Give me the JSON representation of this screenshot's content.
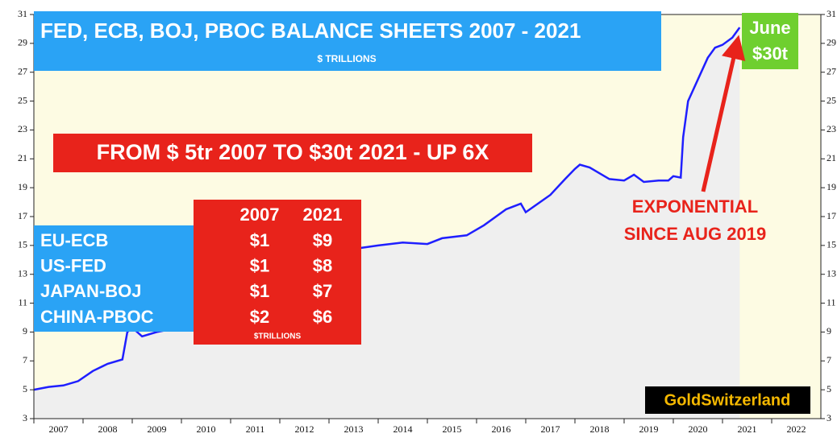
{
  "chart_data": {
    "type": "line",
    "title": "FED, ECB, BOJ, PBOC BALANCE SHEETS  2007 - 2021",
    "subtitle": "$ TRILLIONS",
    "headline": "FROM $ 5tr 2007 TO $30t 2021 - UP 6X",
    "callout": [
      "June",
      "$30t"
    ],
    "annotation": [
      "EXPONENTIAL",
      "SINCE AUG 2019"
    ],
    "watermark": "GoldSwitzerland",
    "comparison_table": {
      "columns": [
        "2007",
        "2021"
      ],
      "rows": [
        {
          "label": "EU-ECB",
          "values": [
            "$1",
            "$9"
          ]
        },
        {
          "label": "US-FED",
          "values": [
            "$1",
            "$8"
          ]
        },
        {
          "label": "JAPAN-BOJ",
          "values": [
            "$1",
            "$7"
          ]
        },
        {
          "label": "CHINA-PBOC",
          "values": [
            "$2",
            "$6"
          ]
        }
      ],
      "note": "$TRILLIONS"
    },
    "x": [
      2007.0,
      2007.3,
      2007.6,
      2007.9,
      2008.2,
      2008.5,
      2008.8,
      2008.9,
      2009.0,
      2009.2,
      2009.5,
      2009.8,
      2010.0,
      2010.5,
      2011.0,
      2011.5,
      2012.0,
      2012.5,
      2013.0,
      2013.2,
      2013.6,
      2014.0,
      2014.5,
      2015.0,
      2015.3,
      2015.8,
      2016.15,
      2016.6,
      2016.9,
      2017.0,
      2017.5,
      2017.8,
      2018.0,
      2018.1,
      2018.3,
      2018.7,
      2019.0,
      2019.2,
      2019.4,
      2019.7,
      2019.9,
      2020.0,
      2020.15,
      2020.2,
      2020.3,
      2020.5,
      2020.7,
      2020.85,
      2021.0,
      2021.2,
      2021.35
    ],
    "series": [
      {
        "name": "Balance sheets",
        "color": "#1f1fff",
        "values": [
          5.0,
          5.2,
          5.3,
          5.6,
          6.3,
          6.8,
          7.1,
          9.0,
          9.3,
          8.7,
          9.0,
          9.2,
          9.5,
          10.0,
          10.8,
          11.5,
          12.5,
          13.3,
          13.6,
          14.2,
          14.8,
          15.0,
          15.2,
          15.1,
          15.5,
          15.7,
          16.4,
          17.5,
          17.9,
          17.3,
          18.5,
          19.6,
          20.3,
          20.6,
          20.4,
          19.6,
          19.5,
          19.9,
          19.4,
          19.5,
          19.5,
          19.8,
          19.7,
          22.5,
          25.0,
          26.5,
          28.0,
          28.7,
          28.9,
          29.4,
          30.1
        ]
      }
    ],
    "xlim": [
      2007,
      2023
    ],
    "xticks": [
      2007,
      2008,
      2009,
      2010,
      2011,
      2012,
      2013,
      2014,
      2015,
      2016,
      2017,
      2018,
      2019,
      2020,
      2021,
      2022
    ],
    "ylim": [
      3,
      31
    ],
    "yticks": [
      3,
      5,
      7,
      9,
      11,
      13,
      15,
      17,
      19,
      21,
      23,
      25,
      27,
      29,
      31
    ],
    "area_color": "#efefef",
    "background": "#fdfbe3"
  }
}
